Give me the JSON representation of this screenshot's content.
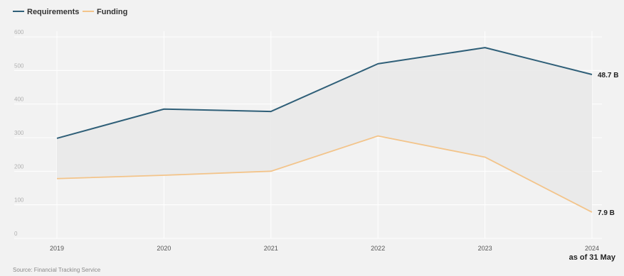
{
  "legend": {
    "requirements_label": "Requirements",
    "funding_label": "Funding"
  },
  "source": "Source: Financial Tracking Service",
  "x_note": "as of 31 May",
  "colors": {
    "requirements": "#2f5f78",
    "funding": "#f3c48a",
    "gap_fill": "#e9e9e9",
    "background": "#f2f2f2",
    "grid": "#ffffff"
  },
  "chart_data": {
    "type": "line",
    "title": "",
    "xlabel": "",
    "ylabel": "",
    "categories": [
      "2019",
      "2020",
      "2021",
      "2022",
      "2023",
      "2024"
    ],
    "y_ticks": [
      "0",
      "100",
      "200",
      "300",
      "400",
      "500",
      "600"
    ],
    "ylim": [
      0,
      600
    ],
    "grid": true,
    "legend_position": "top-left",
    "shaded_gap_between_series": true,
    "series": [
      {
        "name": "Requirements",
        "values": [
          298,
          385,
          378,
          520,
          568,
          488
        ],
        "end_label": "48.7 B"
      },
      {
        "name": "Funding",
        "values": [
          178,
          188,
          200,
          305,
          242,
          78
        ],
        "end_label": "7.9 B"
      }
    ]
  }
}
